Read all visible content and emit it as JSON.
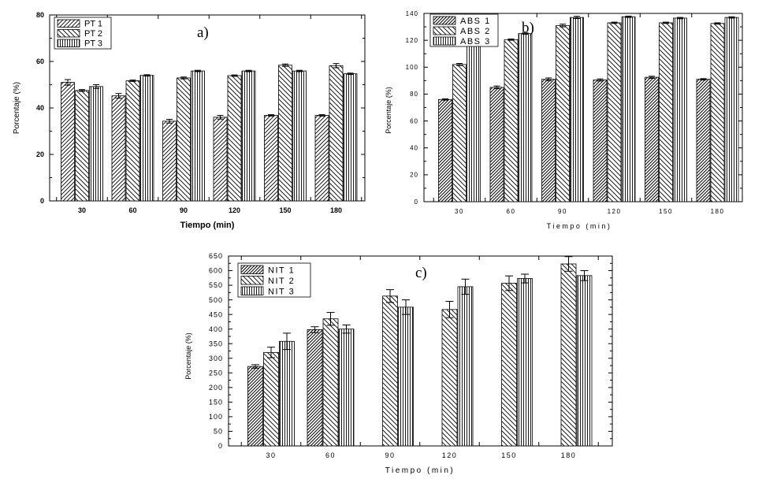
{
  "chart_data": [
    {
      "panel": "a)",
      "type": "bar",
      "xlabel": "Tiempo (min)",
      "ylabel": "Porcentaje (%)",
      "ylim": [
        0,
        80
      ],
      "yticks": [
        "0",
        "20",
        "40",
        "60",
        "80"
      ],
      "categories": [
        "30",
        "60",
        "90",
        "120",
        "150",
        "180"
      ],
      "series": [
        {
          "name": "PT 1",
          "values": [
            51,
            45.2,
            34.3,
            36,
            36.8,
            36.8
          ],
          "errors": [
            1.2,
            1.0,
            0.8,
            0.8,
            0.3,
            0.3
          ]
        },
        {
          "name": "PT 2",
          "values": [
            47.5,
            51.7,
            52.9,
            53.9,
            58.4,
            58.2
          ],
          "errors": [
            0.4,
            0.3,
            0.4,
            0.3,
            0.5,
            0.9
          ]
        },
        {
          "name": "PT 3",
          "values": [
            49.2,
            54,
            55.9,
            55.9,
            55.9,
            54.7
          ],
          "errors": [
            0.8,
            0.3,
            0.3,
            0.3,
            0.3,
            0.3
          ]
        }
      ],
      "legend": "top-left"
    },
    {
      "panel": "b)",
      "type": "bar",
      "xlabel": "Tiempo (min)",
      "ylabel": "Porcentaje (%)",
      "ylim": [
        0,
        140
      ],
      "yticks": [
        "0",
        "20",
        "40",
        "60",
        "80",
        "100",
        "120",
        "140"
      ],
      "categories": [
        "30",
        "60",
        "90",
        "120",
        "150",
        "180"
      ],
      "series": [
        {
          "name": "ABS 1",
          "values": [
            76,
            85,
            91,
            90.5,
            92.5,
            91
          ],
          "errors": [
            0.5,
            1.0,
            1.0,
            0.8,
            0.8,
            0.5
          ]
        },
        {
          "name": "ABS 2",
          "values": [
            102,
            120.5,
            131,
            133,
            133,
            132.5
          ],
          "errors": [
            0.8,
            0.5,
            1.0,
            0.5,
            0.5,
            0.5
          ]
        },
        {
          "name": "ABS 3",
          "values": [
            118,
            125,
            137,
            137.5,
            136.5,
            137
          ],
          "errors": [
            1.2,
            0.5,
            0.8,
            0.5,
            0.5,
            0.5
          ]
        }
      ],
      "legend": "top-left"
    },
    {
      "panel": "c)",
      "type": "bar",
      "xlabel": "Tiempo (min)",
      "ylabel": "Porcentaje (%)",
      "ylim": [
        0,
        650
      ],
      "yticks": [
        "0",
        "50",
        "100",
        "150",
        "200",
        "250",
        "300",
        "350",
        "400",
        "450",
        "500",
        "550",
        "600",
        "650"
      ],
      "categories": [
        "30",
        "60",
        "90",
        "120",
        "150",
        "180"
      ],
      "series": [
        {
          "name": "NIT 1",
          "values": [
            272,
            398,
            null,
            null,
            null,
            null
          ],
          "errors": [
            6,
            10,
            null,
            null,
            null,
            null
          ]
        },
        {
          "name": "NIT 2",
          "values": [
            320,
            435,
            513,
            467,
            557,
            623
          ],
          "errors": [
            18,
            22,
            22,
            28,
            25,
            25
          ]
        },
        {
          "name": "NIT 3",
          "values": [
            358,
            400,
            475,
            545,
            573,
            583
          ],
          "errors": [
            28,
            14,
            25,
            26,
            15,
            17
          ]
        }
      ],
      "legend": "top-left"
    }
  ]
}
